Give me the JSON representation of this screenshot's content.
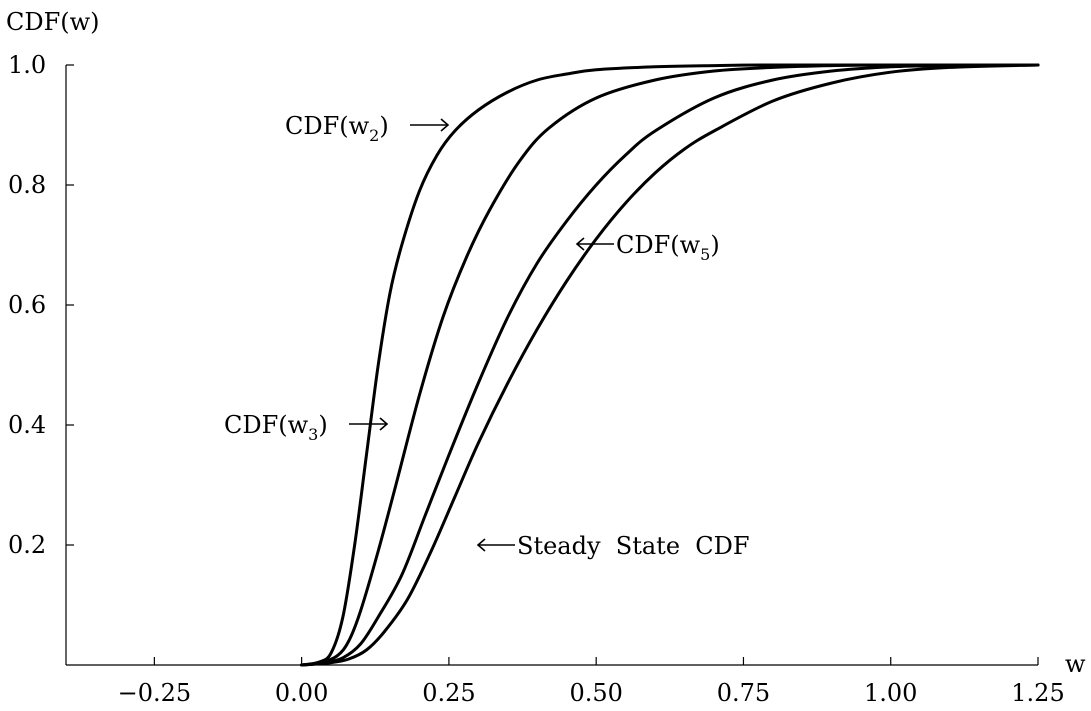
{
  "chart_data": {
    "type": "line",
    "title": "",
    "xlabel": "w",
    "ylabel": "CDF(w)",
    "xlim": [
      -0.4,
      1.25
    ],
    "ylim": [
      0,
      1.0
    ],
    "xticks": [
      "−0.25",
      "0.00",
      "0.25",
      "0.50",
      "0.75",
      "1.00",
      "1.25"
    ],
    "xtick_values": [
      -0.25,
      0,
      0.25,
      0.5,
      0.75,
      1.0,
      1.25
    ],
    "yticks": [
      "0.2",
      "0.4",
      "0.6",
      "0.8",
      "1.0"
    ],
    "ytick_values": [
      0.2,
      0.4,
      0.6,
      0.8,
      1.0
    ],
    "grid": false,
    "legend": "none",
    "series": [
      {
        "name": "CDF(w2)",
        "x": [
          0,
          0.03,
          0.05,
          0.07,
          0.09,
          0.11,
          0.13,
          0.15,
          0.17,
          0.2,
          0.23,
          0.26,
          0.3,
          0.35,
          0.4,
          0.45,
          0.5,
          0.6,
          0.7,
          0.8,
          1.0,
          1.25
        ],
        "y": [
          0,
          0.005,
          0.02,
          0.08,
          0.2,
          0.35,
          0.5,
          0.62,
          0.7,
          0.79,
          0.85,
          0.89,
          0.925,
          0.955,
          0.975,
          0.985,
          0.992,
          0.997,
          0.999,
          1.0,
          1.0,
          1.0
        ]
      },
      {
        "name": "CDF(w3)",
        "x": [
          0,
          0.03,
          0.06,
          0.08,
          0.1,
          0.13,
          0.16,
          0.2,
          0.24,
          0.28,
          0.32,
          0.37,
          0.42,
          0.5,
          0.6,
          0.7,
          0.8,
          0.9,
          1.0,
          1.25
        ],
        "y": [
          0,
          0.003,
          0.015,
          0.04,
          0.09,
          0.19,
          0.3,
          0.45,
          0.58,
          0.68,
          0.76,
          0.84,
          0.895,
          0.945,
          0.975,
          0.99,
          0.996,
          0.999,
          1.0,
          1.0
        ]
      },
      {
        "name": "CDF(w5)",
        "x": [
          0,
          0.04,
          0.07,
          0.1,
          0.13,
          0.17,
          0.21,
          0.25,
          0.3,
          0.35,
          0.4,
          0.45,
          0.5,
          0.55,
          0.6,
          0.7,
          0.8,
          0.9,
          1.0,
          1.1,
          1.25
        ],
        "y": [
          0,
          0.004,
          0.012,
          0.035,
          0.08,
          0.15,
          0.25,
          0.35,
          0.47,
          0.58,
          0.67,
          0.74,
          0.8,
          0.85,
          0.89,
          0.945,
          0.975,
          0.99,
          0.997,
          0.999,
          1.0
        ]
      },
      {
        "name": "Steady State CDF",
        "x": [
          0,
          0.05,
          0.08,
          0.11,
          0.14,
          0.18,
          0.22,
          0.26,
          0.3,
          0.35,
          0.4,
          0.45,
          0.5,
          0.55,
          0.6,
          0.65,
          0.7,
          0.8,
          0.9,
          1.0,
          1.1,
          1.25
        ],
        "y": [
          0,
          0.004,
          0.01,
          0.025,
          0.055,
          0.11,
          0.19,
          0.28,
          0.37,
          0.47,
          0.56,
          0.64,
          0.71,
          0.77,
          0.82,
          0.86,
          0.89,
          0.94,
          0.97,
          0.988,
          0.996,
          1.0
        ]
      }
    ],
    "annotations": [
      {
        "text": "CDF(w",
        "sub": "2",
        "tail": ")",
        "arrow": "right"
      },
      {
        "text": "CDF(w",
        "sub": "3",
        "tail": ")",
        "arrow": "right"
      },
      {
        "text": "CDF(w",
        "sub": "5",
        "tail": ")",
        "arrow": "left"
      },
      {
        "text": "Steady  State  CDF",
        "sub": "",
        "tail": "",
        "arrow": "left"
      }
    ]
  }
}
